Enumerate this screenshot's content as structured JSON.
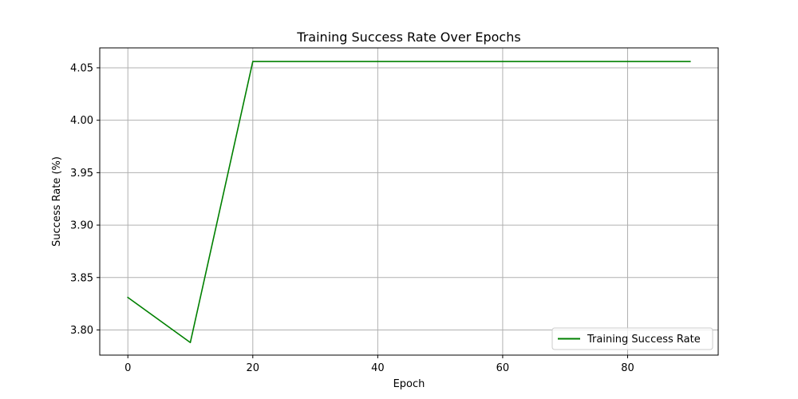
{
  "chart_data": {
    "type": "line",
    "title": "Training Success Rate Over Epochs",
    "xlabel": "Epoch",
    "ylabel": "Success Rate (%)",
    "xlim": [
      -4.5,
      94.5
    ],
    "ylim": [
      3.776,
      4.069
    ],
    "xticks": [
      0,
      20,
      40,
      60,
      80
    ],
    "xtick_labels": [
      "0",
      "20",
      "40",
      "60",
      "80"
    ],
    "yticks": [
      3.8,
      3.85,
      3.9,
      3.95,
      4.0,
      4.05
    ],
    "ytick_labels": [
      "3.80",
      "3.85",
      "3.90",
      "3.95",
      "4.00",
      "4.05"
    ],
    "grid": true,
    "legend_position": "lower-right",
    "series": [
      {
        "name": "Training Success Rate",
        "color": "#008000",
        "x": [
          0,
          10,
          20,
          30,
          40,
          50,
          60,
          70,
          80,
          90
        ],
        "y": [
          3.831,
          3.788,
          4.056,
          4.056,
          4.056,
          4.056,
          4.056,
          4.056,
          4.056,
          4.056
        ]
      }
    ]
  }
}
